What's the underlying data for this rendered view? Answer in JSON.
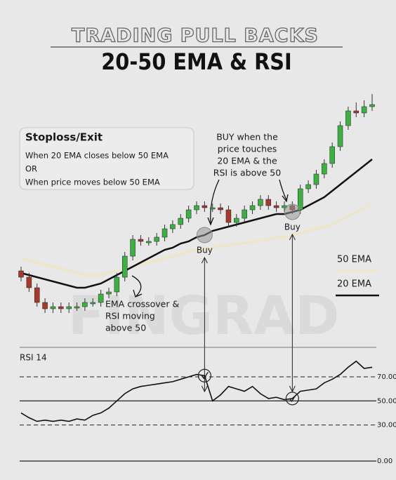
{
  "title": "TRADING PULL BACKS",
  "subtitle": "20-50 EMA & RSI",
  "watermark": "FINGRAD",
  "stoploss": {
    "title": "Stoploss/Exit",
    "lines": [
      "When 20 EMA closes below 50 EMA",
      "OR",
      "When price moves below 50 EMA"
    ]
  },
  "buy_note": [
    "BUY when the",
    "price touches",
    "20 EMA & the",
    "RSI is above 50"
  ],
  "crossover_note": [
    "EMA crossover &",
    "RSI moving",
    "above 50"
  ],
  "chart_data": [
    {
      "type": "candlestick",
      "ylim": [
        0,
        110
      ],
      "up_color": "#3cb043",
      "down_color": "#a33a2c",
      "open": [
        28,
        25,
        20,
        13,
        10,
        11,
        10,
        11,
        11,
        13,
        13,
        17,
        18,
        25,
        35,
        43,
        42,
        42,
        44,
        48,
        50,
        53,
        57,
        59,
        58,
        58,
        57,
        51,
        53,
        57,
        59,
        62,
        59,
        58,
        59,
        57,
        67,
        69,
        74,
        79,
        87,
        97,
        104,
        103,
        106
      ],
      "high": [
        30,
        27,
        22,
        15,
        13,
        13,
        13,
        13,
        15,
        15,
        19,
        20,
        27,
        37,
        45,
        45,
        44,
        46,
        50,
        52,
        55,
        59,
        61,
        61,
        60,
        60,
        59,
        55,
        59,
        61,
        64,
        64,
        61,
        61,
        61,
        69,
        71,
        76,
        81,
        89,
        99,
        106,
        108,
        109,
        112
      ],
      "low": [
        23,
        18,
        11,
        8,
        8,
        8,
        8,
        9,
        9,
        11,
        11,
        15,
        16,
        23,
        33,
        40,
        40,
        40,
        42,
        46,
        48,
        51,
        55,
        56,
        56,
        55,
        49,
        49,
        51,
        55,
        57,
        57,
        56,
        56,
        55,
        55,
        65,
        67,
        72,
        77,
        85,
        95,
        101,
        101,
        104
      ],
      "close": [
        25,
        20,
        13,
        10,
        11,
        10,
        11,
        11,
        13,
        13,
        17,
        18,
        25,
        35,
        43,
        42,
        42,
        44,
        48,
        50,
        53,
        57,
        59,
        58,
        58,
        57,
        51,
        53,
        57,
        59,
        62,
        59,
        58,
        59,
        57,
        67,
        69,
        74,
        79,
        87,
        97,
        104,
        103,
        106,
        107
      ],
      "series": [
        {
          "name": "50 EMA",
          "color": "#efe6c4",
          "values": [
            34,
            33,
            32,
            31,
            30,
            29,
            28,
            27,
            26,
            26,
            26,
            27,
            28,
            29,
            30,
            31,
            32,
            33,
            34,
            35,
            36,
            37,
            38,
            38,
            39,
            40,
            40,
            41,
            41,
            42,
            42,
            43,
            44,
            44,
            45,
            46,
            47,
            48,
            49,
            50,
            52,
            54,
            56,
            58,
            60
          ]
        },
        {
          "name": "20 EMA",
          "color": "#111111",
          "values": [
            27,
            26,
            25,
            24,
            23,
            22,
            21,
            20,
            20,
            21,
            22,
            24,
            26,
            28,
            30,
            32,
            34,
            36,
            38,
            39,
            41,
            42,
            44,
            45,
            47,
            48,
            49,
            50,
            51,
            52,
            53,
            54,
            55,
            55,
            56,
            57,
            59,
            61,
            63,
            66,
            69,
            72,
            75,
            78,
            81
          ]
        }
      ],
      "annotations": [
        {
          "text": "Buy",
          "index": 23
        },
        {
          "text": "Buy",
          "index": 34
        }
      ]
    },
    {
      "type": "line",
      "title": "RSI 14",
      "ylim": [
        0,
        92
      ],
      "yticks": [
        {
          "value": 0,
          "label": "0.00"
        },
        {
          "value": 30,
          "label": "30.00"
        },
        {
          "value": 50,
          "label": "50.00"
        },
        {
          "value": 70,
          "label": "70.00"
        }
      ],
      "color": "#111111",
      "values": [
        40,
        36,
        33,
        34,
        33,
        34,
        33,
        35,
        34,
        38,
        40,
        44,
        50,
        56,
        60,
        62,
        63,
        64,
        65,
        66,
        68,
        70,
        72,
        71,
        50,
        55,
        62,
        60,
        58,
        62,
        56,
        52,
        53,
        51,
        52,
        58,
        59,
        60,
        65,
        68,
        72,
        78,
        83,
        77,
        78
      ]
    }
  ]
}
